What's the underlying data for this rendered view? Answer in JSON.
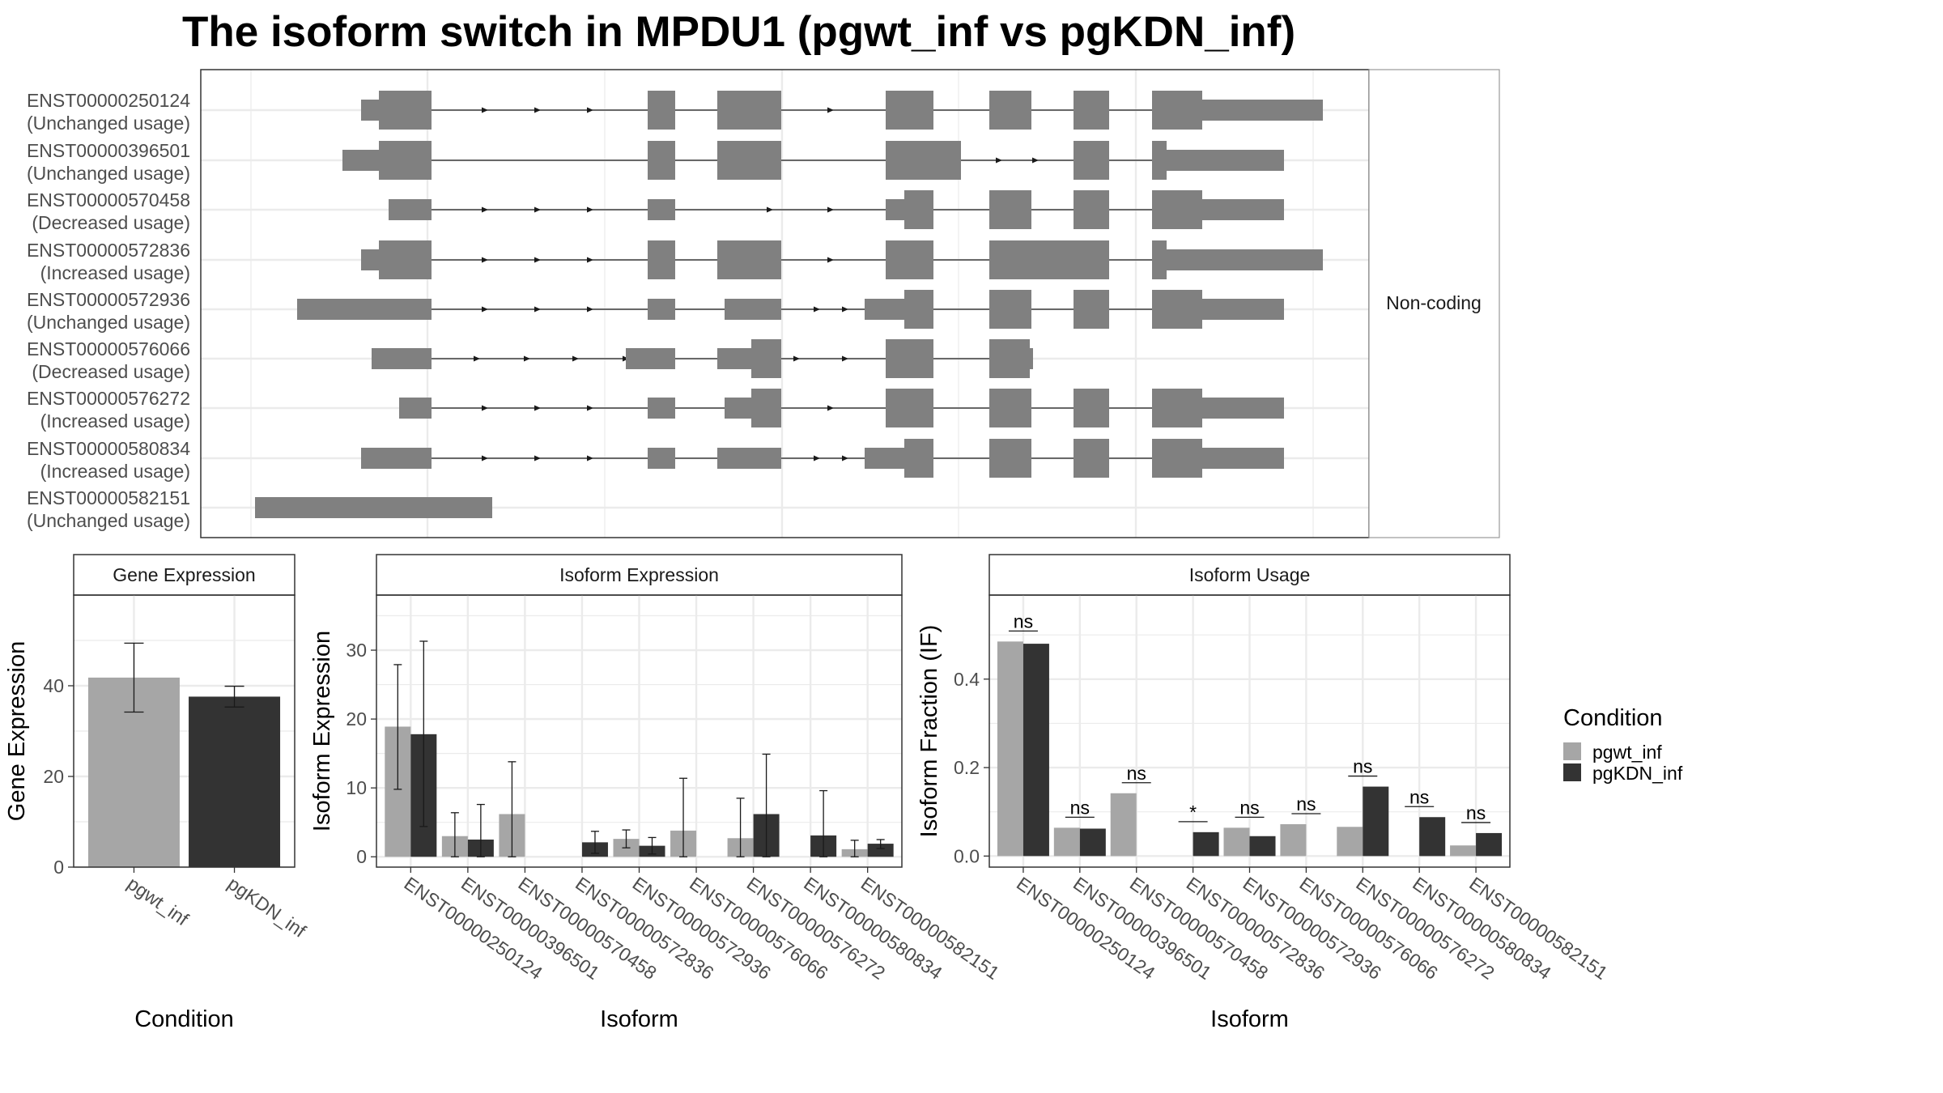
{
  "title": "The isoform switch in MPDU1 (pgwt_inf vs pgKDN_inf)",
  "colors": {
    "pgwt_inf": "#a6a6a6",
    "pgKDN_inf": "#333333",
    "exon": "#808080",
    "grid": "#ebebeb",
    "panel_border": "#333333",
    "strip_border": "#9a9a9a"
  },
  "structure_panel": {
    "strip_label": "Non-coding",
    "transcripts": [
      {
        "id": "ENST00000250124",
        "usage": "(Unchanged usage)"
      },
      {
        "id": "ENST00000396501",
        "usage": "(Unchanged usage)"
      },
      {
        "id": "ENST00000570458",
        "usage": "(Decreased usage)"
      },
      {
        "id": "ENST00000572836",
        "usage": "(Increased usage)"
      },
      {
        "id": "ENST00000572936",
        "usage": "(Unchanged usage)"
      },
      {
        "id": "ENST00000576066",
        "usage": "(Decreased usage)"
      },
      {
        "id": "ENST00000576272",
        "usage": "(Increased usage)"
      },
      {
        "id": "ENST00000580834",
        "usage": "(Increased usage)"
      },
      {
        "id": "ENST00000582151",
        "usage": "(Unchanged usage)"
      }
    ]
  },
  "legend": {
    "title": "Condition",
    "items": [
      "pgwt_inf",
      "pgKDN_inf"
    ]
  },
  "chart_data": [
    {
      "type": "bar",
      "strip_title": "Gene Expression",
      "xlabel": "Condition",
      "ylabel": "Gene Expression",
      "ylim": [
        0,
        60
      ],
      "yticks": [
        0,
        20,
        40
      ],
      "categories": [
        "pgwt_inf",
        "pgKDN_inf"
      ],
      "values": [
        41.8,
        37.6
      ],
      "error_low": [
        34.2,
        35.3
      ],
      "error_high": [
        49.4,
        39.9
      ],
      "grid": true
    },
    {
      "type": "bar",
      "strip_title": "Isoform Expression",
      "xlabel": "Isoform",
      "ylabel": "Isoform Expression",
      "ylim": [
        -1.5,
        38
      ],
      "yticks": [
        0,
        10,
        20,
        30
      ],
      "categories": [
        "ENST00000250124",
        "ENST00000396501",
        "ENST00000570458",
        "ENST00000572836",
        "ENST00000572936",
        "ENST00000576066",
        "ENST00000576272",
        "ENST00000580834",
        "ENST00000582151"
      ],
      "series": [
        {
          "name": "pgwt_inf",
          "values": [
            18.9,
            3.0,
            6.2,
            0.0,
            2.6,
            3.8,
            2.7,
            0.0,
            1.1
          ],
          "error_low": [
            9.8,
            0.0,
            0.0,
            0.0,
            1.3,
            0.0,
            0.0,
            0.0,
            0.0
          ],
          "error_high": [
            27.9,
            6.4,
            13.8,
            0.0,
            3.9,
            11.4,
            8.5,
            0.0,
            2.4
          ]
        },
        {
          "name": "pgKDN_inf",
          "values": [
            17.8,
            2.5,
            0.0,
            2.1,
            1.6,
            0.0,
            6.2,
            3.1,
            1.9
          ],
          "error_low": [
            4.4,
            0.0,
            0.0,
            0.5,
            0.4,
            0.0,
            0.0,
            0.0,
            1.2
          ],
          "error_high": [
            31.3,
            7.6,
            0.0,
            3.7,
            2.8,
            0.0,
            14.9,
            9.6,
            2.5
          ]
        }
      ],
      "grid": true
    },
    {
      "type": "bar",
      "strip_title": "Isoform Usage",
      "xlabel": "Isoform",
      "ylabel": "Isoform Fraction (IF)",
      "ylim": [
        -0.025,
        0.59
      ],
      "yticks": [
        0.0,
        0.2,
        0.4
      ],
      "ytick_labels": [
        "0.0",
        "0.2",
        "0.4"
      ],
      "categories": [
        "ENST00000250124",
        "ENST00000396501",
        "ENST00000570458",
        "ENST00000572836",
        "ENST00000572936",
        "ENST00000576066",
        "ENST00000576272",
        "ENST00000580834",
        "ENST00000582151"
      ],
      "series": [
        {
          "name": "pgwt_inf",
          "values": [
            0.485,
            0.064,
            0.142,
            0.0,
            0.064,
            0.072,
            0.066,
            0.0,
            0.024
          ]
        },
        {
          "name": "pgKDN_inf",
          "values": [
            0.48,
            0.062,
            0.0,
            0.054,
            0.045,
            0.0,
            0.157,
            0.088,
            0.052
          ]
        }
      ],
      "significance": [
        "ns",
        "ns",
        "ns",
        "*",
        "ns",
        "ns",
        "ns",
        "ns",
        "ns"
      ],
      "grid": true
    }
  ]
}
